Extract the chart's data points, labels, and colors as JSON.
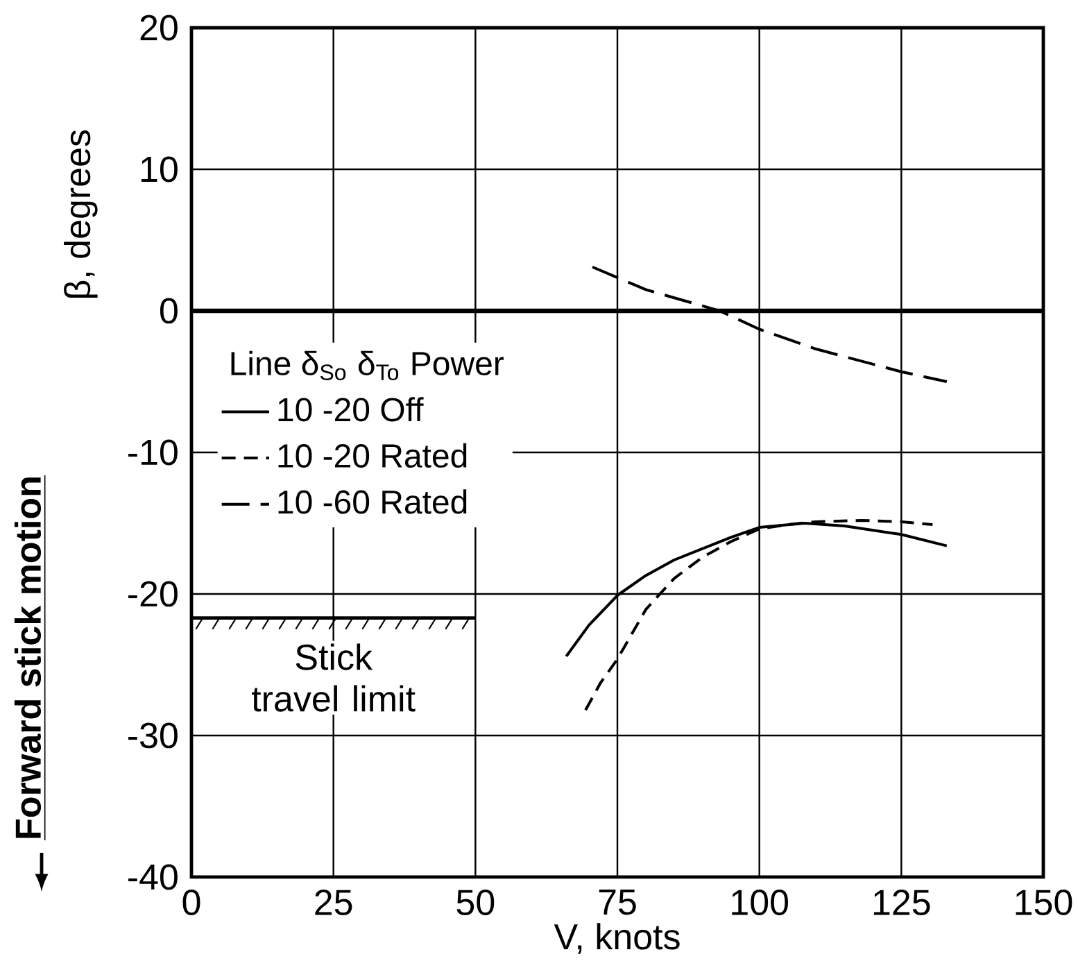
{
  "chart_data": {
    "type": "line",
    "xlabel": "V, knots",
    "ylabel": "β, degrees",
    "legend_title": "Line   δ$_{So}$  δ$_{To}$  Power",
    "xlim": [
      0,
      150
    ],
    "ylim": [
      -40,
      20
    ],
    "xticks": [
      0,
      25,
      50,
      75,
      100,
      125,
      150
    ],
    "yticks": [
      -40,
      -30,
      -20,
      -10,
      0,
      10,
      20
    ],
    "grid": true,
    "legend": "left",
    "series": [
      {
        "name": "10  -20  Off",
        "color": "#000000",
        "line_style": "solid",
        "x": [
          66,
          70,
          75,
          80,
          85,
          90,
          95,
          100,
          108,
          115,
          125,
          133
        ],
        "values": [
          -24.4,
          -22.2,
          -20.1,
          -18.7,
          -17.6,
          -16.8,
          -16.0,
          -15.3,
          -15.0,
          -15.2,
          -15.8,
          -16.6
        ]
      },
      {
        "name": "10  -20  Rated",
        "color": "#000000",
        "line_style": "dashed",
        "x": [
          69.4,
          72,
          75,
          80,
          85,
          90,
          95,
          100,
          105,
          110,
          118,
          125,
          130.5
        ],
        "values": [
          -28.2,
          -26.3,
          -24.6,
          -21.1,
          -18.9,
          -17.4,
          -16.3,
          -15.4,
          -15.1,
          -14.9,
          -14.8,
          -14.9,
          -15.1
        ]
      },
      {
        "name": "10  -60  Rated",
        "color": "#000000",
        "line_style": "dashed",
        "x": [
          70.6,
          80,
          93,
          100,
          110,
          125,
          133
        ],
        "values": [
          3.1,
          1.5,
          0,
          -1.3,
          -2.7,
          -4.3,
          -5.0
        ]
      },
      {
        "name": "Stick travel limit",
        "color": "#000000",
        "line_style": "solid",
        "x": [
          0,
          50
        ],
        "values": [
          -21.7,
          -21.7
        ]
      }
    ],
    "ref_lines": [
      {
        "axis": "y",
        "value": 0
      }
    ],
    "annotations": [
      "Forward stick motion"
    ]
  }
}
